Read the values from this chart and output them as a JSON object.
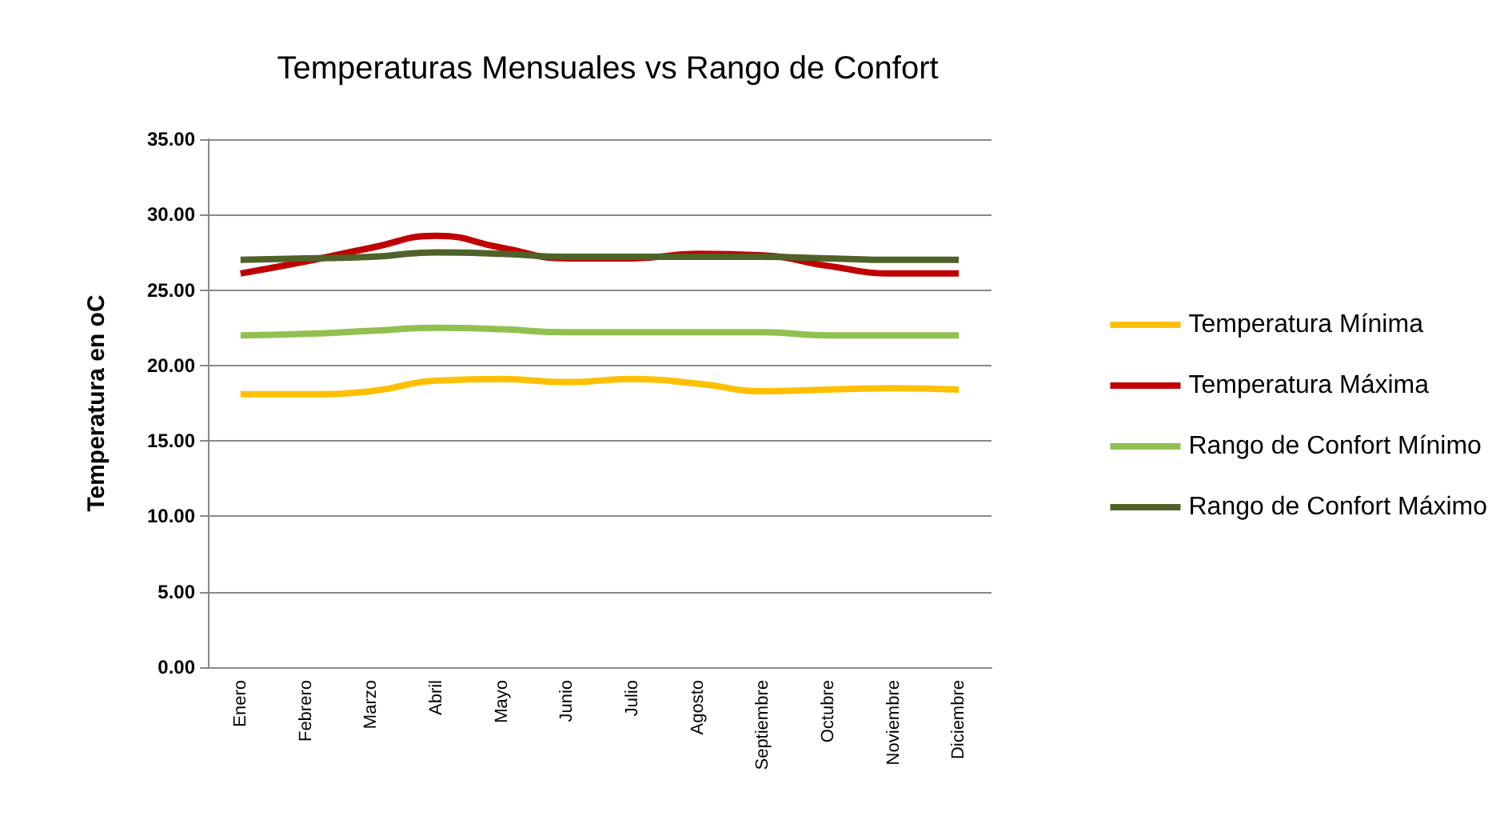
{
  "chart_data": {
    "type": "line",
    "title": "Temperaturas Mensuales vs Rango de Confort",
    "ylabel": "Temperatura en oC",
    "categories": [
      "Enero",
      "Febrero",
      "Marzo",
      "Abril",
      "Mayo",
      "Junio",
      "Julio",
      "Agosto",
      "Septiembre",
      "Octubre",
      "Noviembre",
      "Diciembre"
    ],
    "series": [
      {
        "name": "Temperatura Mínima",
        "color": "#ffc000",
        "values": [
          18.1,
          18.1,
          18.3,
          19.0,
          19.1,
          18.9,
          19.1,
          18.8,
          18.3,
          18.4,
          18.5,
          18.4
        ]
      },
      {
        "name": "Temperatura Máxima",
        "color": "#c00000",
        "values": [
          26.1,
          26.9,
          27.8,
          28.6,
          27.8,
          27.1,
          27.1,
          27.4,
          27.3,
          26.6,
          26.1,
          26.1
        ]
      },
      {
        "name": "Rango de Confort Mínimo",
        "color": "#92c050",
        "values": [
          22.0,
          22.1,
          22.3,
          22.5,
          22.4,
          22.2,
          22.2,
          22.2,
          22.2,
          22.0,
          22.0,
          22.0
        ]
      },
      {
        "name": "Rango de Confort Máximo",
        "color": "#4f6228",
        "values": [
          27.0,
          27.1,
          27.2,
          27.5,
          27.4,
          27.2,
          27.2,
          27.2,
          27.2,
          27.1,
          27.0,
          27.0
        ]
      }
    ],
    "ylim": [
      0,
      35
    ],
    "yticks": [
      {
        "value": 0,
        "label": "0.00"
      },
      {
        "value": 5,
        "label": "5.00"
      },
      {
        "value": 10,
        "label": "10.00"
      },
      {
        "value": 15,
        "label": "15.00"
      },
      {
        "value": 20,
        "label": "20.00"
      },
      {
        "value": 25,
        "label": "25.00"
      },
      {
        "value": 30,
        "label": "30.00"
      },
      {
        "value": 35,
        "label": "35.00"
      }
    ],
    "grid": "y",
    "legend": "right",
    "marker": "none",
    "line_style": "solid"
  }
}
